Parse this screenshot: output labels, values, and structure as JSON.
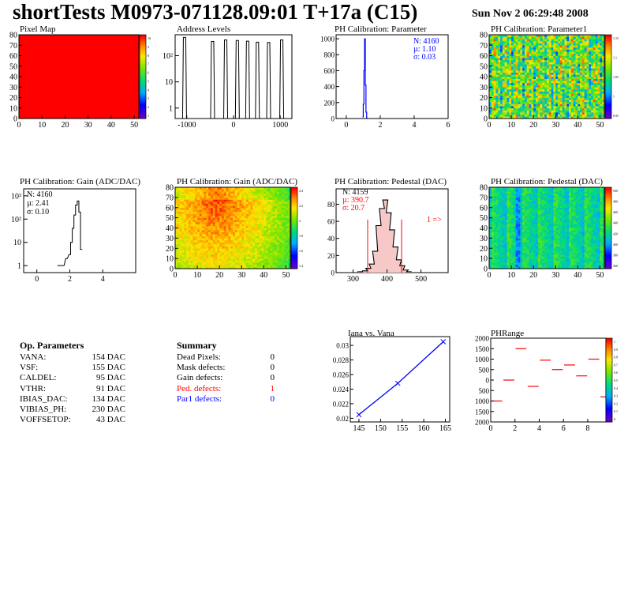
{
  "header": {
    "title": "shortTests M0973-071128.09:01 T+17a (C15)",
    "date": "Sun Nov  2 06:29:48 2008"
  },
  "colors": {
    "red": "#ff0000",
    "blue": "#0000ff",
    "line": "#000000"
  },
  "panels": {
    "pixel_map": {
      "title": "Pixel Map"
    },
    "address_levels": {
      "title": "Address Levels"
    },
    "ph_param": {
      "title": "PH Calibration: Parameter"
    },
    "ph_param1": {
      "title": "PH Calibration: Parameter1"
    },
    "gain_hist": {
      "title": "PH Calibration: Gain (ADC/DAC)"
    },
    "gain_map": {
      "title": "PH Calibration: Gain (ADC/DAC)"
    },
    "ped_hist": {
      "title": "PH Calibration: Pedestal (DAC)"
    },
    "ped_map": {
      "title": "PH Calibration: Pedestal (DAC)"
    },
    "iana": {
      "title": "Iana vs. Vana"
    },
    "phrange": {
      "title": "PHRange"
    }
  },
  "stats": {
    "ph_param": [
      "N: 4160",
      "µ: 1.10",
      "σ: 0.03"
    ],
    "gain": [
      "N: 4160",
      "µ: 2.41",
      "σ: 0.10"
    ],
    "ped": [
      "N: 4159",
      "µ: 390.7",
      "σ: 20.7"
    ],
    "ped_overflow": "1 =>"
  },
  "op_params": {
    "title": "Op. Parameters",
    "rows": [
      {
        "name": "VANA:",
        "value": "154 DAC"
      },
      {
        "name": "VSF:",
        "value": "155 DAC"
      },
      {
        "name": "CALDEL:",
        "value": "95 DAC"
      },
      {
        "name": "VTHR:",
        "value": "91 DAC"
      },
      {
        "name": "IBIAS_DAC:",
        "value": "134 DAC"
      },
      {
        "name": "VIBIAS_PH:",
        "value": "230 DAC"
      },
      {
        "name": "VOFFSETOP:",
        "value": "43 DAC"
      }
    ]
  },
  "summary": {
    "title": "Summary",
    "rows": [
      {
        "name": "Dead Pixels:",
        "value": "0",
        "color": "#000000"
      },
      {
        "name": "Mask defects:",
        "value": "0",
        "color": "#000000"
      },
      {
        "name": "Gain defects:",
        "value": "0",
        "color": "#000000"
      },
      {
        "name": "Ped. defects:",
        "value": "1",
        "color": "#ff0000"
      },
      {
        "name": "Par1 defects:",
        "value": "0",
        "color": "#0000ff"
      }
    ]
  },
  "chart_data": [
    {
      "id": "pixel_map",
      "type": "heatmap",
      "title": "Pixel Map",
      "x_ticks": [
        "0",
        "10",
        "20",
        "30",
        "40",
        "50"
      ],
      "y_ticks": [
        "0",
        "10",
        "20",
        "30",
        "40",
        "50",
        "60",
        "70",
        "80"
      ],
      "z_ticks": [
        "10",
        "9",
        "8",
        "7",
        "6",
        "5",
        "4",
        "3",
        "2",
        "1"
      ],
      "xlim": [
        0,
        52
      ],
      "ylim": [
        0,
        80
      ],
      "z_value": 10
    },
    {
      "id": "address_levels",
      "type": "bar",
      "title": "Address Levels",
      "x_ticks": [
        "-1000",
        "0",
        "1000"
      ],
      "y_ticks": [
        "1",
        "10",
        "10²"
      ],
      "xlim": [
        -1250,
        1250
      ],
      "yscale": "log",
      "peaks_x": [
        -1040,
        -440,
        -160,
        90,
        310,
        520,
        760,
        1040
      ],
      "peaks_height": [
        500,
        350,
        400,
        380,
        360,
        330,
        320,
        400
      ]
    },
    {
      "id": "ph_param",
      "type": "bar",
      "title": "PH Calibration: Parameter",
      "x_ticks": [
        "0",
        "2",
        "4",
        "6"
      ],
      "y_ticks": [
        "0",
        "200",
        "400",
        "600",
        "800",
        "1000"
      ],
      "xlim": [
        -0.6,
        6
      ],
      "ylim": [
        0,
        1050
      ],
      "x": [
        0.98,
        1.02,
        1.06,
        1.1,
        1.14,
        1.18,
        1.22
      ],
      "values": [
        20,
        180,
        600,
        1000,
        420,
        80,
        10
      ]
    },
    {
      "id": "ph_param1",
      "type": "heatmap",
      "title": "PH Calibration: Parameter1",
      "x_ticks": [
        "0",
        "10",
        "20",
        "30",
        "40",
        "50"
      ],
      "y_ticks": [
        "0",
        "10",
        "20",
        "30",
        "40",
        "50",
        "60",
        "70",
        "80"
      ],
      "z_ticks": [
        "1.15",
        "1.1",
        "1.05",
        "1",
        "0.95"
      ],
      "xlim": [
        0,
        52
      ],
      "ylim": [
        0,
        80
      ]
    },
    {
      "id": "gain_hist",
      "type": "bar",
      "title": "PH Calibration: Gain (ADC/DAC)",
      "x_ticks": [
        "0",
        "2",
        "4"
      ],
      "y_ticks": [
        "1",
        "10",
        "10²",
        "10³"
      ],
      "xlim": [
        -0.8,
        6
      ],
      "yscale": "log",
      "x": [
        1.3,
        1.6,
        1.8,
        2.0,
        2.1,
        2.2,
        2.3,
        2.4,
        2.5,
        2.6,
        2.7
      ],
      "values": [
        1,
        1,
        2,
        3,
        10,
        40,
        150,
        400,
        600,
        200,
        5
      ]
    },
    {
      "id": "gain_map",
      "type": "heatmap",
      "title": "PH Calibration: Gain (ADC/DAC)",
      "x_ticks": [
        "0",
        "10",
        "20",
        "30",
        "40",
        "50"
      ],
      "y_ticks": [
        "0",
        "10",
        "20",
        "30",
        "40",
        "50",
        "60",
        "70",
        "80"
      ],
      "z_ticks": [
        "2.4",
        "2.2",
        "2",
        "1.8",
        "1.6",
        "1.4"
      ],
      "xlim": [
        0,
        52
      ],
      "ylim": [
        0,
        80
      ]
    },
    {
      "id": "ped_hist",
      "type": "bar",
      "title": "PH Calibration: Pedestal (DAC)",
      "x_ticks": [
        "300",
        "400",
        "500"
      ],
      "y_ticks": [
        "0",
        "20",
        "40",
        "60",
        "80"
      ],
      "xlim": [
        250,
        580
      ],
      "ylim": [
        0,
        98
      ],
      "x": [
        320,
        335,
        345,
        355,
        365,
        375,
        385,
        395,
        405,
        415,
        425,
        435,
        445,
        455,
        465
      ],
      "values": [
        1,
        2,
        5,
        10,
        25,
        55,
        75,
        85,
        70,
        50,
        30,
        15,
        8,
        3,
        1
      ],
      "cut_lines_x": [
        343,
        443
      ]
    },
    {
      "id": "ped_map",
      "type": "heatmap",
      "title": "PH Calibration: Pedestal (DAC)",
      "x_ticks": [
        "0",
        "10",
        "20",
        "30",
        "40",
        "50"
      ],
      "y_ticks": [
        "0",
        "10",
        "20",
        "30",
        "40",
        "50",
        "60",
        "70",
        "80"
      ],
      "z_ticks": [
        "500",
        "480",
        "460",
        "440",
        "420",
        "400",
        "380",
        "360"
      ],
      "xlim": [
        0,
        52
      ],
      "ylim": [
        0,
        80
      ]
    },
    {
      "id": "iana",
      "type": "line",
      "title": "Iana vs. Vana",
      "x_ticks": [
        "145",
        "150",
        "155",
        "160",
        "165"
      ],
      "y_ticks": [
        "0.02",
        "0.022",
        "0.024",
        "0.026",
        "0.028",
        "0.03"
      ],
      "xlim": [
        143,
        166
      ],
      "ylim": [
        0.0195,
        0.0312
      ],
      "x": [
        145,
        154,
        164.5
      ],
      "values": [
        0.0205,
        0.0248,
        0.0305
      ]
    },
    {
      "id": "phrange",
      "type": "scatter",
      "title": "PHRange",
      "x_ticks": [
        "0",
        "2",
        "4",
        "6",
        "8"
      ],
      "y_ticks": [
        "2000",
        "1500",
        "1000",
        "500",
        "0",
        "500",
        "1000",
        "1500",
        "2000"
      ],
      "z_ticks": [
        "1",
        "0.9",
        "0.8",
        "0.7",
        "0.6",
        "0.5",
        "0.4",
        "0.3",
        "0.2",
        "0.1",
        "0"
      ],
      "xlim": [
        0,
        9.5
      ],
      "ylim": [
        -2000,
        2000
      ],
      "x": [
        0.5,
        1.5,
        2.5,
        3.5,
        4.5,
        5.5,
        6.5,
        7.5,
        8.5,
        9.5
      ],
      "values": [
        -1000,
        0,
        1500,
        -300,
        950,
        500,
        720,
        200,
        1000,
        -800
      ]
    }
  ]
}
